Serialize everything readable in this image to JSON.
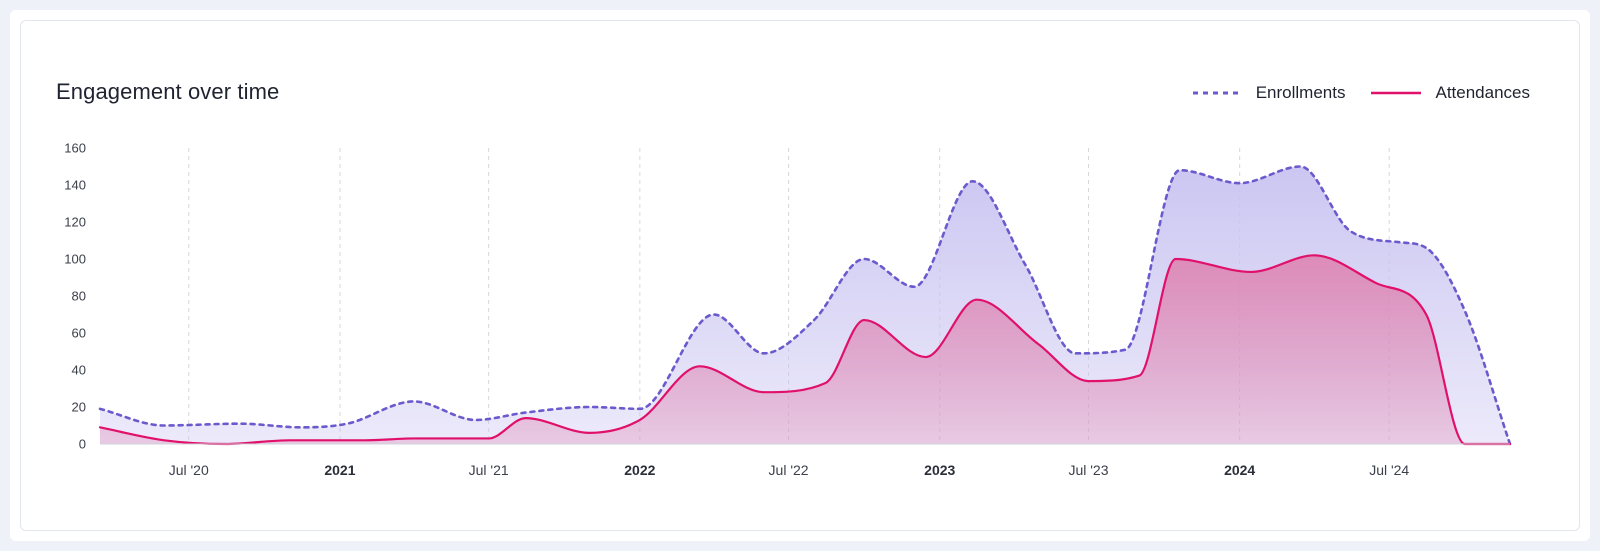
{
  "card": {
    "title": "Engagement over time"
  },
  "legend": {
    "enrollments_label": "Enrollments",
    "attendances_label": "Attendances"
  },
  "colors": {
    "enrollments_line": "#6a5acd",
    "enrollments_fill": "#c9c3f1",
    "attendances_line": "#e0106b",
    "attendances_fill": "#de7fae",
    "grid": "#d6d8de",
    "axis": "#cfd3da"
  },
  "chart_data": {
    "type": "area",
    "x_unit": "date",
    "x_range": [
      "2020-03-15",
      "2024-11-25"
    ],
    "ylim": [
      0,
      160
    ],
    "y_ticks": [
      0,
      20,
      40,
      60,
      80,
      100,
      120,
      140,
      160
    ],
    "x_ticks": [
      {
        "date": "2020-07-01",
        "label": "Jul '20",
        "major": false
      },
      {
        "date": "2021-01-01",
        "label": "2021",
        "major": true
      },
      {
        "date": "2021-07-01",
        "label": "Jul '21",
        "major": false
      },
      {
        "date": "2022-01-01",
        "label": "2022",
        "major": true
      },
      {
        "date": "2022-07-01",
        "label": "Jul '22",
        "major": false
      },
      {
        "date": "2023-01-01",
        "label": "2023",
        "major": true
      },
      {
        "date": "2023-07-01",
        "label": "Jul '23",
        "major": false
      },
      {
        "date": "2024-01-01",
        "label": "2024",
        "major": true
      },
      {
        "date": "2024-07-01",
        "label": "Jul '24",
        "major": false
      }
    ],
    "grid": "vertical-dashed",
    "legend_position": "top-right",
    "series": [
      {
        "name": "Enrollments",
        "style": "dotted",
        "points": [
          [
            "2020-03-15",
            19
          ],
          [
            "2020-06-01",
            10
          ],
          [
            "2020-09-01",
            11
          ],
          [
            "2020-11-15",
            9
          ],
          [
            "2021-01-10",
            11
          ],
          [
            "2021-04-01",
            23
          ],
          [
            "2021-06-15",
            13
          ],
          [
            "2021-08-15",
            17
          ],
          [
            "2021-11-01",
            20
          ],
          [
            "2022-01-01",
            19
          ],
          [
            "2022-04-01",
            70
          ],
          [
            "2022-06-01",
            49
          ],
          [
            "2022-08-01",
            67
          ],
          [
            "2022-10-01",
            100
          ],
          [
            "2022-12-01",
            85
          ],
          [
            "2023-02-10",
            142
          ],
          [
            "2023-04-15",
            97
          ],
          [
            "2023-06-15",
            49
          ],
          [
            "2023-08-15",
            51
          ],
          [
            "2023-10-20",
            148
          ],
          [
            "2024-01-01",
            141
          ],
          [
            "2024-03-15",
            150
          ],
          [
            "2024-05-15",
            115
          ],
          [
            "2024-07-15",
            109
          ],
          [
            "2024-08-15",
            106
          ],
          [
            "2024-10-01",
            72
          ],
          [
            "2024-11-25",
            0
          ]
        ]
      },
      {
        "name": "Attendances",
        "style": "solid",
        "points": [
          [
            "2020-03-15",
            9
          ],
          [
            "2020-06-01",
            2
          ],
          [
            "2020-08-15",
            0
          ],
          [
            "2020-11-01",
            2
          ],
          [
            "2021-02-01",
            2
          ],
          [
            "2021-04-01",
            3
          ],
          [
            "2021-07-01",
            3
          ],
          [
            "2021-08-15",
            14
          ],
          [
            "2021-11-01",
            6
          ],
          [
            "2022-01-01",
            13
          ],
          [
            "2022-03-15",
            42
          ],
          [
            "2022-06-01",
            28
          ],
          [
            "2022-08-15",
            33
          ],
          [
            "2022-10-01",
            67
          ],
          [
            "2022-12-15",
            47
          ],
          [
            "2023-02-15",
            78
          ],
          [
            "2023-05-01",
            54
          ],
          [
            "2023-07-01",
            34
          ],
          [
            "2023-09-01",
            37
          ],
          [
            "2023-10-15",
            100
          ],
          [
            "2024-01-15",
            93
          ],
          [
            "2024-04-01",
            102
          ],
          [
            "2024-06-15",
            87
          ],
          [
            "2024-08-15",
            70
          ],
          [
            "2024-10-01",
            0
          ],
          [
            "2024-11-25",
            0
          ]
        ]
      }
    ]
  }
}
